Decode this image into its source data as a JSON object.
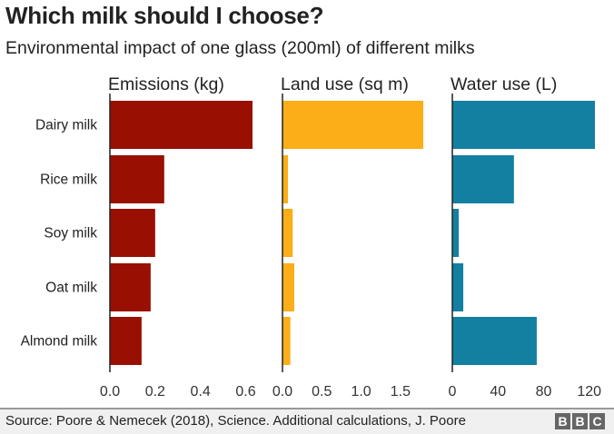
{
  "chart_data": {
    "type": "bar",
    "orientation": "horizontal",
    "title": "Which milk should I choose?",
    "subtitle": "Environmental impact of one glass (200ml) of different milks",
    "categories": [
      "Dairy milk",
      "Rice milk",
      "Soy milk",
      "Oat milk",
      "Almond milk"
    ],
    "panels": [
      {
        "name": "Emissions (kg)",
        "color": "#990f02",
        "values": [
          0.63,
          0.24,
          0.2,
          0.18,
          0.14
        ],
        "xlim": [
          0,
          0.63
        ],
        "ticks": [
          "0.0",
          "0.2",
          "0.4",
          "0.6"
        ],
        "tick_values": [
          0,
          0.2,
          0.4,
          0.6
        ]
      },
      {
        "name": "Land use (sq m)",
        "color": "#fbae17",
        "values": [
          1.79,
          0.07,
          0.13,
          0.15,
          0.1
        ],
        "xlim": [
          0,
          1.79
        ],
        "ticks": [
          "0.0",
          "0.5",
          "1.0",
          "1.5"
        ],
        "tick_values": [
          0,
          0.5,
          1.0,
          1.5
        ]
      },
      {
        "name": "Water use (L)",
        "color": "#1380a1",
        "values": [
          125,
          54,
          5.6,
          9.6,
          74
        ],
        "xlim": [
          0,
          125
        ],
        "ticks": [
          "0",
          "40",
          "80",
          "120"
        ],
        "tick_values": [
          0,
          40,
          80,
          120
        ]
      }
    ],
    "grid": false,
    "legend": "none"
  },
  "footer": {
    "source": "Source: Poore & Nemecek (2018), Science. Additional calculations, J. Poore",
    "logo": "BBC"
  }
}
